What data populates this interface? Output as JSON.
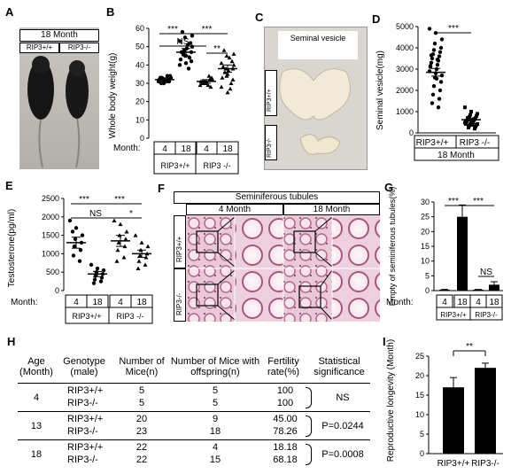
{
  "panels": {
    "A": {
      "letter": "A",
      "banner": "18 Month",
      "genotypes": [
        "RIP3+/+",
        "RIP3-/-"
      ]
    },
    "B": {
      "letter": "B",
      "ylabel": "Whole body weight(g)",
      "yticks": [
        "0",
        "10",
        "20",
        "30",
        "40",
        "50",
        "60"
      ],
      "sig": [
        "***",
        "NS",
        "***",
        "**"
      ],
      "month_label": "Month:",
      "months": [
        "4",
        "18",
        "4",
        "18"
      ],
      "genotypes": [
        "RIP3+/+",
        "RIP3 -/-"
      ]
    },
    "C": {
      "letter": "C",
      "title": "Seminal vesicle",
      "genotypes": [
        "RIP3+/+",
        "RIP3-/-"
      ]
    },
    "D": {
      "letter": "D",
      "ylabel": "Seminal vesicle(mg)",
      "yticks": [
        "0",
        "1000",
        "2000",
        "3000",
        "4000",
        "5000"
      ],
      "sig": "***",
      "categories": [
        "RIP3+/+",
        "RIP3 -/-"
      ],
      "group": "18 Month"
    },
    "E": {
      "letter": "E",
      "ylabel": "Testosterone(pg/ml)",
      "yticks": [
        "0",
        "500",
        "1000",
        "1500",
        "2000",
        "2500"
      ],
      "sig": [
        "***",
        "NS",
        "***",
        "*"
      ],
      "month_label": "Month:",
      "months": [
        "4",
        "18",
        "4",
        "18"
      ],
      "genotypes": [
        "RIP3+/+",
        "RIP3 -/-"
      ]
    },
    "F": {
      "letter": "F",
      "title": "Seminiferous tubules",
      "months": [
        "4 Month",
        "18 Month"
      ],
      "genotypes": [
        "RIP3+/+",
        "RIP3-/-"
      ]
    },
    "G": {
      "letter": "G",
      "ylabel": "Empty of seminiferous tubules(%)",
      "yticks": [
        "0",
        "5",
        "10",
        "15",
        "20",
        "25",
        "30"
      ],
      "sig": [
        "***",
        "***",
        "NS"
      ],
      "month_label": "Month:",
      "months": [
        "4",
        "18",
        "4",
        "18"
      ],
      "genotypes": [
        "RIP3+/+",
        "RIP3-/-"
      ]
    },
    "H": {
      "letter": "H",
      "headers": [
        "Age (Month)",
        "Genotype (male)",
        "Number of Mice(n)",
        "Number of Mice with offspring(n)",
        "Fertility rate(%)",
        "Statistical significance"
      ],
      "groups": [
        {
          "age": "4",
          "rows": [
            [
              "RIP3+/+",
              "5",
              "5",
              "100"
            ],
            [
              "RIP3-/-",
              "5",
              "5",
              "100"
            ]
          ],
          "stat": "NS"
        },
        {
          "age": "13",
          "rows": [
            [
              "RIP3+/+",
              "20",
              "9",
              "45.00"
            ],
            [
              "RIP3-/-",
              "23",
              "18",
              "78.26"
            ]
          ],
          "stat": "P=0.0244"
        },
        {
          "age": "18",
          "rows": [
            [
              "RIP3+/+",
              "22",
              "4",
              "18.18"
            ],
            [
              "RIP3-/-",
              "22",
              "15",
              "68.18"
            ]
          ],
          "stat": "P=0.0008"
        }
      ]
    },
    "I": {
      "letter": "I",
      "ylabel": "Reproductive longevity (Month)",
      "yticks": [
        "0",
        "5",
        "10",
        "15",
        "20",
        "25"
      ],
      "sig": "**",
      "categories": [
        "RIP3+/+",
        "RIP3-/-"
      ]
    }
  },
  "chart_data": [
    {
      "panel": "B",
      "type": "scatter",
      "categories": [
        "4 RIP3+/+",
        "18 RIP3+/+",
        "4 RIP3-/-",
        "18 RIP3-/-"
      ],
      "means": [
        32,
        47,
        31,
        38
      ],
      "sem": [
        1,
        2,
        1,
        2
      ],
      "points": [
        [
          31,
          32,
          33,
          30,
          34,
          32,
          31,
          33,
          32,
          30,
          34,
          33,
          31,
          32
        ],
        [
          40,
          45,
          50,
          55,
          42,
          48,
          52,
          46,
          44,
          58,
          38,
          47,
          51,
          43,
          49,
          53,
          41,
          56,
          45,
          47
        ],
        [
          29,
          31,
          32,
          30,
          33,
          31,
          28,
          30,
          32,
          31,
          34,
          30,
          29,
          31
        ],
        [
          28,
          35,
          40,
          45,
          32,
          38,
          42,
          36,
          30,
          48,
          27,
          39,
          44,
          33,
          37,
          41,
          25,
          46,
          34,
          38
        ]
      ],
      "ylim": [
        0,
        60
      ]
    },
    {
      "panel": "D",
      "type": "scatter",
      "categories": [
        "RIP3+/+",
        "RIP3-/-"
      ],
      "means": [
        2850,
        620
      ],
      "sem": [
        180,
        60
      ],
      "points": [
        [
          4900,
          4700,
          4400,
          4200,
          4000,
          3900,
          3800,
          3700,
          3600,
          3500,
          3400,
          3300,
          3200,
          3100,
          3000,
          2900,
          2800,
          2700,
          2600,
          2400,
          2200,
          2000,
          1800,
          1600,
          1400,
          1200,
          3650,
          3450,
          3150,
          2550
        ],
        [
          1200,
          1000,
          900,
          850,
          800,
          750,
          700,
          680,
          650,
          620,
          600,
          580,
          550,
          520,
          500,
          480,
          450,
          420,
          400,
          380,
          350,
          300,
          250,
          200,
          700,
          650,
          550,
          480,
          420,
          380
        ]
      ],
      "ylim": [
        0,
        5000
      ]
    },
    {
      "panel": "E",
      "type": "scatter",
      "categories": [
        "4 RIP3+/+",
        "18 RIP3+/+",
        "4 RIP3-/-",
        "18 RIP3-/-"
      ],
      "means": [
        1300,
        450,
        1350,
        1000
      ],
      "sem": [
        150,
        70,
        150,
        100
      ],
      "points": [
        [
          1900,
          1700,
          1500,
          1400,
          1300,
          1200,
          1100,
          950,
          800,
          1600
        ],
        [
          700,
          600,
          550,
          500,
          450,
          400,
          350,
          300,
          250,
          200
        ],
        [
          1900,
          1800,
          1600,
          1500,
          1400,
          1300,
          1200,
          1100,
          900,
          800
        ],
        [
          1500,
          1300,
          1200,
          1100,
          1000,
          950,
          900,
          800,
          700,
          600
        ]
      ],
      "ylim": [
        0,
        2500
      ]
    },
    {
      "panel": "G",
      "type": "bar",
      "categories": [
        "4 RIP3+/+",
        "18 RIP3+/+",
        "4 RIP3-/-",
        "18 RIP3-/-"
      ],
      "values": [
        0.3,
        25,
        0.3,
        2
      ],
      "errors": [
        0.1,
        4,
        0.1,
        1
      ],
      "ylim": [
        0,
        30
      ]
    },
    {
      "panel": "I",
      "type": "bar",
      "categories": [
        "RIP3+/+",
        "RIP3-/-"
      ],
      "values": [
        17,
        22
      ],
      "errors": [
        2.5,
        1.2
      ],
      "ylim": [
        0,
        25
      ]
    }
  ]
}
